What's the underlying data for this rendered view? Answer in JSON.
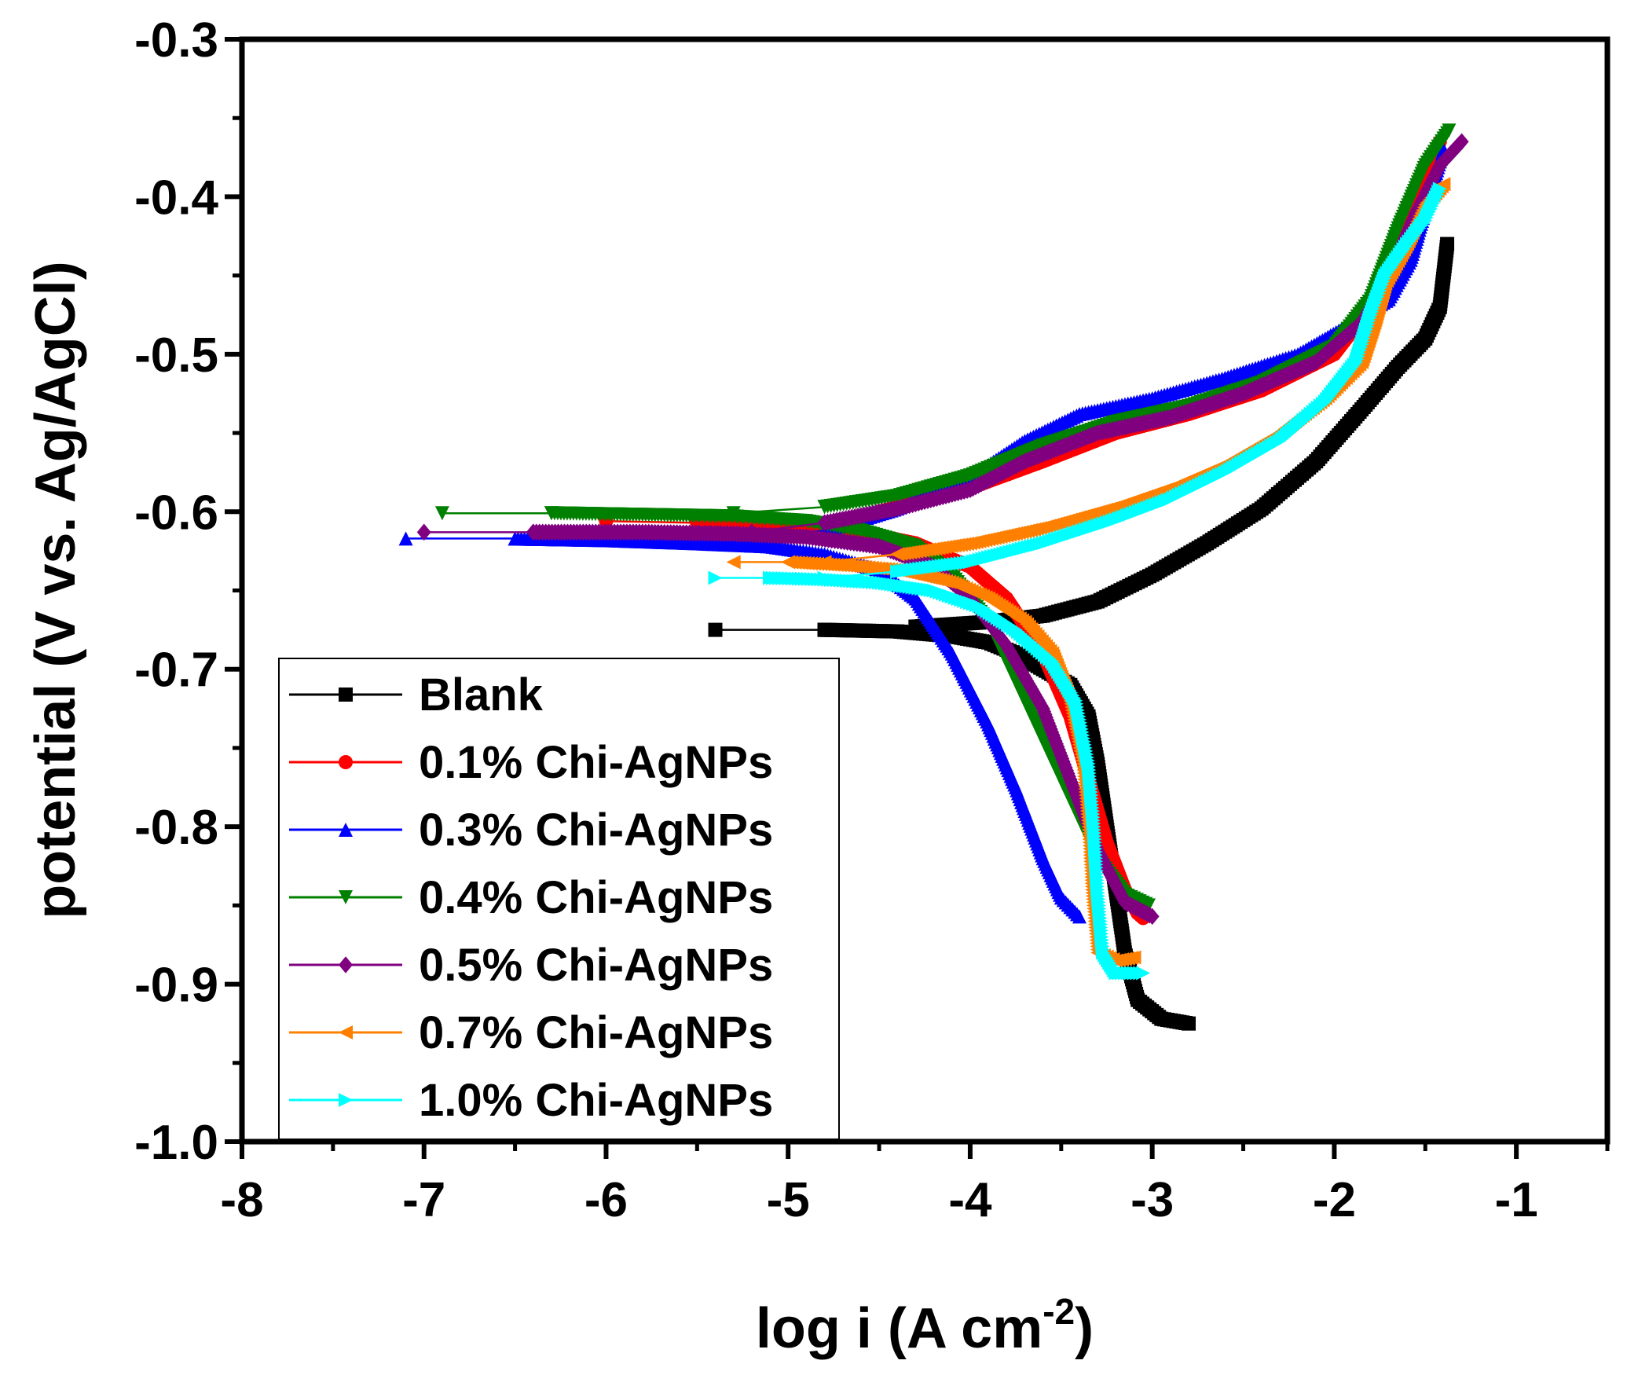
{
  "chart_data": {
    "type": "line",
    "title": "",
    "xlabel_base": "log i (A cm",
    "xlabel_sup": "-2",
    "xlabel_tail": ")",
    "ylabel": "potential (V vs. Ag/AgCl)",
    "xlim": [
      -8,
      -0.5
    ],
    "ylim": [
      -1.0,
      -0.3
    ],
    "xticks": [
      -8,
      -7,
      -6,
      -5,
      -4,
      -3,
      -2,
      -1
    ],
    "xtick_labels": [
      "-8",
      "-7",
      "-6",
      "-5",
      "-4",
      "-3",
      "-2",
      "-1"
    ],
    "yticks": [
      -0.3,
      -0.4,
      -0.5,
      -0.6,
      -0.7,
      -0.8,
      -0.9,
      -1.0
    ],
    "ytick_labels": [
      "-0.3",
      "-0.4",
      "-0.5",
      "-0.6",
      "-0.7",
      "-0.8",
      "-0.9",
      "-1.0"
    ],
    "grid": false,
    "legend_position": "bottom-left",
    "series": [
      {
        "name": "Blank",
        "color": "#000000",
        "marker": "square",
        "cathodic": [
          [
            -5.4,
            -0.675
          ],
          [
            -4.8,
            -0.675
          ],
          [
            -4.4,
            -0.676
          ],
          [
            -4.1,
            -0.679
          ],
          [
            -3.9,
            -0.683
          ],
          [
            -3.75,
            -0.69
          ],
          [
            -3.6,
            -0.7
          ],
          [
            -3.45,
            -0.71
          ],
          [
            -3.35,
            -0.73
          ],
          [
            -3.3,
            -0.76
          ],
          [
            -3.25,
            -0.8
          ],
          [
            -3.2,
            -0.84
          ],
          [
            -3.15,
            -0.88
          ],
          [
            -3.08,
            -0.91
          ],
          [
            -2.95,
            -0.922
          ],
          [
            -2.8,
            -0.925
          ]
        ],
        "anodic": [
          [
            -4.8,
            -0.675
          ],
          [
            -4.3,
            -0.673
          ],
          [
            -3.9,
            -0.67
          ],
          [
            -3.6,
            -0.666
          ],
          [
            -3.3,
            -0.657
          ],
          [
            -3.0,
            -0.64
          ],
          [
            -2.7,
            -0.62
          ],
          [
            -2.4,
            -0.598
          ],
          [
            -2.1,
            -0.568
          ],
          [
            -1.85,
            -0.535
          ],
          [
            -1.65,
            -0.508
          ],
          [
            -1.5,
            -0.49
          ],
          [
            -1.42,
            -0.47
          ],
          [
            -1.4,
            -0.45
          ],
          [
            -1.38,
            -0.43
          ]
        ]
      },
      {
        "name": "0.1% Chi-AgNPs",
        "color": "#ff0000",
        "marker": "circle",
        "cathodic": [
          [
            -6.0,
            -0.606
          ],
          [
            -5.5,
            -0.607
          ],
          [
            -5.0,
            -0.609
          ],
          [
            -4.6,
            -0.613
          ],
          [
            -4.3,
            -0.62
          ],
          [
            -4.0,
            -0.635
          ],
          [
            -3.8,
            -0.655
          ],
          [
            -3.6,
            -0.69
          ],
          [
            -3.45,
            -0.73
          ],
          [
            -3.35,
            -0.77
          ],
          [
            -3.25,
            -0.81
          ],
          [
            -3.15,
            -0.84
          ],
          [
            -3.08,
            -0.855
          ],
          [
            -3.05,
            -0.858
          ]
        ],
        "anodic": [
          [
            -5.0,
            -0.606
          ],
          [
            -4.5,
            -0.6
          ],
          [
            -4.0,
            -0.585
          ],
          [
            -3.6,
            -0.568
          ],
          [
            -3.2,
            -0.55
          ],
          [
            -2.8,
            -0.538
          ],
          [
            -2.4,
            -0.523
          ],
          [
            -2.0,
            -0.5
          ],
          [
            -1.8,
            -0.47
          ],
          [
            -1.65,
            -0.43
          ],
          [
            -1.5,
            -0.385
          ],
          [
            -1.42,
            -0.365
          ]
        ]
      },
      {
        "name": "0.3% Chi-AgNPs",
        "color": "#0000ff",
        "marker": "triangle-up",
        "cathodic": [
          [
            -7.1,
            -0.617
          ],
          [
            -6.5,
            -0.617
          ],
          [
            -6.0,
            -0.618
          ],
          [
            -5.5,
            -0.62
          ],
          [
            -5.1,
            -0.622
          ],
          [
            -4.8,
            -0.627
          ],
          [
            -4.5,
            -0.637
          ],
          [
            -4.3,
            -0.655
          ],
          [
            -4.1,
            -0.69
          ],
          [
            -3.9,
            -0.735
          ],
          [
            -3.75,
            -0.775
          ],
          [
            -3.6,
            -0.82
          ],
          [
            -3.5,
            -0.845
          ],
          [
            -3.4,
            -0.857
          ]
        ],
        "anodic": [
          [
            -5.3,
            -0.617
          ],
          [
            -4.8,
            -0.612
          ],
          [
            -4.4,
            -0.598
          ],
          [
            -4.0,
            -0.578
          ],
          [
            -3.7,
            -0.555
          ],
          [
            -3.4,
            -0.538
          ],
          [
            -3.0,
            -0.528
          ],
          [
            -2.6,
            -0.515
          ],
          [
            -2.2,
            -0.5
          ],
          [
            -1.9,
            -0.48
          ],
          [
            -1.7,
            -0.465
          ],
          [
            -1.58,
            -0.44
          ],
          [
            -1.48,
            -0.4
          ],
          [
            -1.4,
            -0.37
          ]
        ]
      },
      {
        "name": "0.4% Chi-AgNPs",
        "color": "#008000",
        "marker": "triangle-down",
        "cathodic": [
          [
            -6.9,
            -0.601
          ],
          [
            -6.3,
            -0.601
          ],
          [
            -5.8,
            -0.602
          ],
          [
            -5.3,
            -0.603
          ],
          [
            -4.9,
            -0.606
          ],
          [
            -4.6,
            -0.612
          ],
          [
            -4.3,
            -0.622
          ],
          [
            -4.1,
            -0.64
          ],
          [
            -3.9,
            -0.67
          ],
          [
            -3.7,
            -0.72
          ],
          [
            -3.5,
            -0.77
          ],
          [
            -3.3,
            -0.82
          ],
          [
            -3.15,
            -0.843
          ],
          [
            -3.02,
            -0.85
          ]
        ],
        "anodic": [
          [
            -5.3,
            -0.601
          ],
          [
            -4.8,
            -0.597
          ],
          [
            -4.4,
            -0.59
          ],
          [
            -4.0,
            -0.577
          ],
          [
            -3.6,
            -0.558
          ],
          [
            -3.2,
            -0.543
          ],
          [
            -2.8,
            -0.533
          ],
          [
            -2.4,
            -0.518
          ],
          [
            -2.0,
            -0.495
          ],
          [
            -1.8,
            -0.465
          ],
          [
            -1.65,
            -0.42
          ],
          [
            -1.5,
            -0.38
          ],
          [
            -1.37,
            -0.358
          ]
        ]
      },
      {
        "name": "0.5% Chi-AgNPs",
        "color": "#800080",
        "marker": "diamond",
        "cathodic": [
          [
            -7.0,
            -0.613
          ],
          [
            -6.4,
            -0.613
          ],
          [
            -5.8,
            -0.613
          ],
          [
            -5.3,
            -0.614
          ],
          [
            -4.9,
            -0.616
          ],
          [
            -4.5,
            -0.622
          ],
          [
            -4.2,
            -0.635
          ],
          [
            -4.0,
            -0.655
          ],
          [
            -3.8,
            -0.685
          ],
          [
            -3.6,
            -0.725
          ],
          [
            -3.45,
            -0.77
          ],
          [
            -3.3,
            -0.815
          ],
          [
            -3.15,
            -0.848
          ],
          [
            -3.0,
            -0.857
          ]
        ],
        "anodic": [
          [
            -5.2,
            -0.613
          ],
          [
            -4.8,
            -0.607
          ],
          [
            -4.4,
            -0.598
          ],
          [
            -4.0,
            -0.586
          ],
          [
            -3.7,
            -0.568
          ],
          [
            -3.3,
            -0.55
          ],
          [
            -2.9,
            -0.54
          ],
          [
            -2.5,
            -0.525
          ],
          [
            -2.1,
            -0.505
          ],
          [
            -1.85,
            -0.48
          ],
          [
            -1.7,
            -0.45
          ],
          [
            -1.55,
            -0.41
          ],
          [
            -1.42,
            -0.38
          ],
          [
            -1.3,
            -0.365
          ]
        ]
      },
      {
        "name": "0.7% Chi-AgNPs",
        "color": "#ff8000",
        "marker": "triangle-left",
        "cathodic": [
          [
            -5.3,
            -0.632
          ],
          [
            -5.0,
            -0.632
          ],
          [
            -4.7,
            -0.634
          ],
          [
            -4.4,
            -0.637
          ],
          [
            -4.1,
            -0.645
          ],
          [
            -3.9,
            -0.655
          ],
          [
            -3.7,
            -0.67
          ],
          [
            -3.55,
            -0.69
          ],
          [
            -3.45,
            -0.72
          ],
          [
            -3.38,
            -0.76
          ],
          [
            -3.35,
            -0.8
          ],
          [
            -3.33,
            -0.84
          ],
          [
            -3.3,
            -0.88
          ],
          [
            -3.2,
            -0.885
          ],
          [
            -3.1,
            -0.883
          ]
        ],
        "anodic": [
          [
            -4.8,
            -0.632
          ],
          [
            -4.4,
            -0.627
          ],
          [
            -4.0,
            -0.62
          ],
          [
            -3.6,
            -0.61
          ],
          [
            -3.2,
            -0.597
          ],
          [
            -2.9,
            -0.585
          ],
          [
            -2.6,
            -0.57
          ],
          [
            -2.3,
            -0.55
          ],
          [
            -2.05,
            -0.528
          ],
          [
            -1.85,
            -0.505
          ],
          [
            -1.78,
            -0.48
          ],
          [
            -1.72,
            -0.455
          ],
          [
            -1.6,
            -0.43
          ],
          [
            -1.5,
            -0.405
          ],
          [
            -1.4,
            -0.392
          ]
        ]
      },
      {
        "name": "1.0% Chi-AgNPs",
        "color": "#00ffff",
        "marker": "triangle-right",
        "cathodic": [
          [
            -5.4,
            -0.642
          ],
          [
            -5.1,
            -0.642
          ],
          [
            -4.8,
            -0.643
          ],
          [
            -4.5,
            -0.645
          ],
          [
            -4.2,
            -0.65
          ],
          [
            -3.95,
            -0.66
          ],
          [
            -3.75,
            -0.675
          ],
          [
            -3.55,
            -0.695
          ],
          [
            -3.42,
            -0.72
          ],
          [
            -3.35,
            -0.76
          ],
          [
            -3.32,
            -0.8
          ],
          [
            -3.3,
            -0.84
          ],
          [
            -3.27,
            -0.88
          ],
          [
            -3.2,
            -0.893
          ],
          [
            -3.05,
            -0.893
          ]
        ],
        "anodic": [
          [
            -4.8,
            -0.642
          ],
          [
            -4.4,
            -0.638
          ],
          [
            -4.0,
            -0.632
          ],
          [
            -3.6,
            -0.62
          ],
          [
            -3.2,
            -0.605
          ],
          [
            -2.9,
            -0.592
          ],
          [
            -2.6,
            -0.575
          ],
          [
            -2.3,
            -0.555
          ],
          [
            -2.05,
            -0.53
          ],
          [
            -1.88,
            -0.505
          ],
          [
            -1.8,
            -0.475
          ],
          [
            -1.72,
            -0.45
          ],
          [
            -1.6,
            -0.43
          ],
          [
            -1.5,
            -0.415
          ],
          [
            -1.42,
            -0.395
          ]
        ]
      }
    ]
  }
}
